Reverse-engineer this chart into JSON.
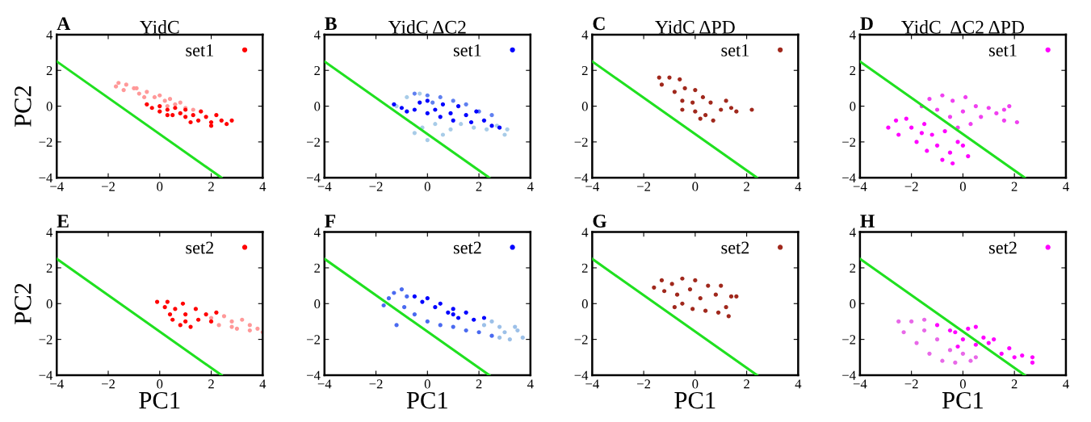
{
  "chart_data": [
    {
      "type": "scatter",
      "title": "YidC",
      "annotations": [
        "A"
      ],
      "ylabel": "PC2",
      "xlim": [
        -4,
        4
      ],
      "ylim": [
        -4,
        4
      ],
      "xticks": [
        -4,
        -2,
        0,
        2,
        4
      ],
      "yticks": [
        -4,
        -2,
        0,
        2,
        4
      ],
      "legend": "top right",
      "marker": "circle",
      "series": [
        {
          "color": "#ff9999",
          "x": [
            -1.7,
            -1.6,
            -1.3,
            -1.4,
            -1.0,
            -0.8,
            -0.5,
            -0.6,
            -0.2,
            0,
            0.2,
            0.4,
            0.6,
            0.8,
            1.0,
            1.3,
            0.3,
            -0.9
          ],
          "values": [
            1.1,
            1.3,
            1.2,
            0.9,
            1.0,
            0.7,
            0.8,
            0.5,
            0.5,
            0.6,
            0.3,
            0.4,
            0.1,
            0.2,
            -0.1,
            -0.2,
            0.0,
            1.0
          ]
        },
        {
          "name": "set1",
          "color": "#ff0000",
          "x": [
            -0.5,
            -0.3,
            0,
            0,
            0.3,
            0.5,
            0.6,
            0.8,
            1.0,
            1.0,
            1.3,
            1.5,
            1.6,
            1.8,
            2.0,
            2.2,
            2.4,
            2.6,
            2.8,
            0.3,
            1.2,
            2.0
          ],
          "values": [
            0.1,
            -0.1,
            0.0,
            -0.3,
            -0.2,
            -0.5,
            -0.1,
            -0.4,
            -0.6,
            -0.2,
            -0.5,
            -0.8,
            -0.3,
            -0.6,
            -0.9,
            -0.5,
            -0.8,
            -1.0,
            -0.8,
            -0.5,
            -0.9,
            -1.1
          ]
        },
        {
          "type": "line",
          "marker": "none",
          "color": "#20e020",
          "x": [
            -4,
            2.4
          ],
          "values": [
            2.5,
            -4
          ]
        }
      ]
    },
    {
      "type": "scatter",
      "title": "YidC ΔC2",
      "annotations": [
        "B"
      ],
      "xlim": [
        -4,
        4
      ],
      "ylim": [
        -4,
        4
      ],
      "xticks": [
        -4,
        -2,
        0,
        2,
        4
      ],
      "yticks": [
        -4,
        -2,
        0,
        2,
        4
      ],
      "legend": "top right",
      "marker": "circle",
      "series": [
        {
          "color": "#a8cce8",
          "x": [
            -1.2,
            -0.8,
            -0.5,
            -0.2,
            0,
            0.3,
            0.6,
            0.9,
            1.3,
            1.8,
            2.3,
            2.7,
            3.1,
            3.0,
            -0.3
          ],
          "values": [
            0.0,
            0.5,
            -1.5,
            -1.2,
            -1.9,
            -1.0,
            -1.6,
            -1.3,
            -1.0,
            -1.2,
            -1.3,
            -1.1,
            -1.3,
            -1.6,
            0.7
          ]
        },
        {
          "color": "#6080f0",
          "x": [
            -0.5,
            0,
            0.5,
            1.0,
            1.5,
            2.0,
            2.5,
            0.2
          ],
          "values": [
            0.7,
            0.6,
            0.5,
            0.3,
            0.1,
            -0.3,
            -0.5,
            0.2
          ]
        },
        {
          "name": "set1",
          "color": "#0000ff",
          "x": [
            -1.3,
            -1.0,
            -0.8,
            -0.5,
            -0.3,
            0,
            0,
            0.3,
            0.5,
            0.6,
            0.9,
            1.0,
            1.2,
            1.5,
            1.7,
            1.9,
            2.2,
            2.5,
            2.8
          ],
          "values": [
            0.1,
            -0.1,
            -0.3,
            -0.2,
            0.2,
            -0.4,
            0.3,
            -0.2,
            -0.6,
            0.1,
            -0.4,
            -0.8,
            0.0,
            -0.5,
            -0.9,
            -0.3,
            -0.8,
            -1.1,
            -1.2
          ]
        },
        {
          "type": "line",
          "marker": "none",
          "color": "#20e020",
          "x": [
            -4,
            2.4
          ],
          "values": [
            2.5,
            -4
          ]
        }
      ]
    },
    {
      "type": "scatter",
      "title": "YidC ΔPD",
      "annotations": [
        "C"
      ],
      "xlim": [
        -4,
        4
      ],
      "ylim": [
        -4,
        4
      ],
      "xticks": [
        -4,
        -2,
        0,
        2,
        4
      ],
      "yticks": [
        -4,
        -2,
        0,
        2,
        4
      ],
      "legend": "top right",
      "marker": "circle",
      "series": [
        {
          "name": "set1",
          "color": "#a0281c",
          "x": [
            -1.4,
            -1.3,
            -1.0,
            -0.8,
            -0.6,
            -0.5,
            -0.4,
            -0.1,
            0,
            0,
            0.3,
            0.4,
            0.6,
            0.7,
            1.0,
            1.2,
            1.4,
            1.6,
            2.2,
            -0.5,
            0.2
          ],
          "values": [
            1.6,
            1.2,
            1.6,
            0.8,
            1.5,
            0.3,
            1.0,
            0.2,
            0.9,
            -0.3,
            0.5,
            -0.5,
            0.2,
            -0.8,
            -0.2,
            0.3,
            -0.1,
            -0.3,
            -0.2,
            -0.2,
            -0.7
          ]
        },
        {
          "type": "line",
          "marker": "none",
          "color": "#20e020",
          "x": [
            -4,
            2.4
          ],
          "values": [
            2.5,
            -4
          ]
        }
      ]
    },
    {
      "type": "scatter",
      "title": "YidC  ΔC2 ΔPD",
      "annotations": [
        "D"
      ],
      "xlim": [
        -4,
        4
      ],
      "ylim": [
        -4,
        4
      ],
      "xticks": [
        -4,
        -2,
        0,
        2,
        4
      ],
      "yticks": [
        -4,
        -2,
        0,
        2,
        4
      ],
      "legend": "top right",
      "marker": "circle",
      "series": [
        {
          "color": "#f040f0",
          "x": [
            -1.6,
            -1.3,
            -1.0,
            -0.8,
            -0.5,
            -0.4,
            0,
            0.1,
            0.3,
            0.5,
            0.7,
            1.0,
            1.3,
            1.6,
            1.8,
            2.1,
            1.6,
            -0.2
          ],
          "values": [
            0.0,
            0.4,
            -0.2,
            0.6,
            -0.6,
            0.3,
            -0.3,
            0.5,
            -1.0,
            0.0,
            -0.6,
            -0.1,
            -0.4,
            -0.2,
            0.0,
            -0.9,
            -0.8,
            -1.2
          ]
        },
        {
          "name": "set1",
          "color": "#ff00ff",
          "x": [
            -2.9,
            -2.6,
            -2.5,
            -2.2,
            -2.0,
            -1.8,
            -1.5,
            -1.4,
            -1.2,
            -1.0,
            -0.8,
            -0.7,
            -0.5,
            -0.4,
            -0.2,
            0.2,
            0,
            -1.6
          ],
          "values": [
            -1.2,
            -0.8,
            -1.6,
            -0.7,
            -1.2,
            -2.0,
            -1.0,
            -2.5,
            -1.6,
            -2.2,
            -3.0,
            -1.4,
            -2.6,
            -3.2,
            -2.0,
            -2.8,
            -2.2,
            -1.5
          ]
        },
        {
          "type": "line",
          "marker": "none",
          "color": "#20e020",
          "x": [
            -4,
            2.4
          ],
          "values": [
            2.5,
            -4
          ]
        }
      ]
    },
    {
      "type": "scatter",
      "annotations": [
        "E"
      ],
      "xlabel": "PC1",
      "ylabel": "PC2",
      "xlim": [
        -4,
        4
      ],
      "ylim": [
        -4,
        4
      ],
      "xticks": [
        -4,
        -2,
        0,
        2,
        4
      ],
      "yticks": [
        -4,
        -2,
        0,
        2,
        4
      ],
      "legend": "top right",
      "marker": "circle",
      "series": [
        {
          "color": "#ff9999",
          "x": [
            2.0,
            2.3,
            2.5,
            2.8,
            3.0,
            3.2,
            3.5,
            3.8,
            4.0,
            3.5,
            2.8
          ],
          "values": [
            -0.8,
            -1.2,
            -0.7,
            -1.0,
            -1.4,
            -0.9,
            -1.2,
            -1.4,
            -1.6,
            -1.5,
            -1.3
          ]
        },
        {
          "name": "set2",
          "color": "#ff0000",
          "x": [
            -0.1,
            0.2,
            0.3,
            0.4,
            0.6,
            0.8,
            0.9,
            1.0,
            1.2,
            1.4,
            1.5,
            1.8,
            2.0,
            2.2,
            1.0,
            0.5
          ],
          "values": [
            0.1,
            -0.2,
            0.1,
            -0.6,
            -0.3,
            -1.2,
            0.0,
            -0.6,
            -1.3,
            -0.3,
            -0.9,
            -0.6,
            -1.0,
            -0.5,
            -1.0,
            -0.9
          ]
        },
        {
          "type": "line",
          "marker": "none",
          "color": "#20e020",
          "x": [
            -4,
            2.4
          ],
          "values": [
            2.5,
            -4
          ]
        }
      ]
    },
    {
      "type": "scatter",
      "annotations": [
        "F"
      ],
      "xlabel": "PC1",
      "xlim": [
        -4,
        4
      ],
      "ylim": [
        -4,
        4
      ],
      "xticks": [
        -4,
        -2,
        0,
        2,
        4
      ],
      "yticks": [
        -4,
        -2,
        0,
        2,
        4
      ],
      "legend": "top right",
      "marker": "circle",
      "series": [
        {
          "color": "#9cc0e8",
          "x": [
            2.2,
            2.5,
            2.8,
            3.0,
            3.2,
            3.5,
            3.7,
            3.4,
            2.8
          ],
          "values": [
            -1.2,
            -1.0,
            -1.3,
            -1.6,
            -2.0,
            -1.5,
            -1.9,
            -1.3,
            -1.9
          ]
        },
        {
          "color": "#4a6af0",
          "x": [
            -1.7,
            -1.5,
            -1.3,
            -1.0,
            -0.8,
            -0.9,
            -0.5,
            0,
            0.5,
            1.0,
            1.5,
            2.0,
            2.5,
            -1.2
          ],
          "values": [
            -0.1,
            0.3,
            0.6,
            0.8,
            0.4,
            -0.2,
            -0.6,
            -1.0,
            -1.2,
            -1.3,
            -1.5,
            -1.6,
            -1.8,
            -1.2
          ]
        },
        {
          "name": "set2",
          "color": "#0000ff",
          "x": [
            -0.5,
            -0.2,
            0,
            0.3,
            0.5,
            0.8,
            1.0,
            1.2,
            1.5,
            1.8,
            2.2,
            1.0
          ],
          "values": [
            0.4,
            0.1,
            0.3,
            -0.2,
            0.0,
            -0.5,
            -0.3,
            -0.8,
            -0.5,
            -0.9,
            -0.8,
            -0.6
          ]
        },
        {
          "type": "line",
          "marker": "none",
          "color": "#20e020",
          "x": [
            -4,
            2.4
          ],
          "values": [
            2.5,
            -4
          ]
        }
      ]
    },
    {
      "type": "scatter",
      "annotations": [
        "G"
      ],
      "xlabel": "PC1",
      "xlim": [
        -4,
        4
      ],
      "ylim": [
        -4,
        4
      ],
      "xticks": [
        -4,
        -2,
        0,
        2,
        4
      ],
      "yticks": [
        -4,
        -2,
        0,
        2,
        4
      ],
      "legend": "top right",
      "marker": "circle",
      "series": [
        {
          "name": "set2",
          "color": "#a0281c",
          "x": [
            -1.6,
            -1.3,
            -1.2,
            -0.9,
            -0.7,
            -0.5,
            -0.5,
            -0.2,
            -0.1,
            0,
            0.2,
            0.4,
            0.5,
            0.8,
            0.9,
            1.0,
            1.2,
            1.3,
            1.4,
            1.6,
            -0.8
          ],
          "values": [
            0.9,
            1.3,
            0.7,
            1.1,
            0.5,
            1.4,
            0.0,
            0.8,
            -0.3,
            1.3,
            0.3,
            -0.4,
            1.0,
            0.5,
            -0.5,
            1.0,
            -0.2,
            -0.7,
            0.4,
            0.4,
            -0.2
          ]
        },
        {
          "type": "line",
          "marker": "none",
          "color": "#20e020",
          "x": [
            -4,
            2.4
          ],
          "values": [
            2.5,
            -4
          ]
        }
      ]
    },
    {
      "type": "scatter",
      "annotations": [
        "H"
      ],
      "xlabel": "PC1",
      "xlim": [
        -4,
        4
      ],
      "ylim": [
        -4,
        4
      ],
      "xticks": [
        -4,
        -2,
        0,
        2,
        4
      ],
      "yticks": [
        -4,
        -2,
        0,
        2,
        4
      ],
      "legend": "top right",
      "marker": "circle",
      "series": [
        {
          "color": "#e868e8",
          "x": [
            -2.5,
            -2.3,
            -2.0,
            -1.8,
            -1.5,
            -1.3,
            -1.0,
            -0.8,
            -0.5,
            -0.3,
            0,
            0.3,
            -1.5,
            0.5
          ],
          "values": [
            -1.0,
            -1.6,
            -1.0,
            -2.2,
            -1.5,
            -2.8,
            -2.0,
            -3.2,
            -2.6,
            -3.3,
            -2.8,
            -3.2,
            -0.9,
            -3.0
          ]
        },
        {
          "name": "set2",
          "color": "#ff00ff",
          "x": [
            -1.0,
            -0.5,
            -0.3,
            0,
            0.2,
            0.5,
            0.8,
            1.0,
            1.2,
            1.5,
            1.8,
            2.0,
            2.3,
            2.7,
            2.7,
            0.5,
            -0.2
          ],
          "values": [
            -1.2,
            -1.5,
            -1.6,
            -2.0,
            -1.4,
            -2.3,
            -1.9,
            -2.2,
            -2.0,
            -2.8,
            -2.5,
            -3.0,
            -2.9,
            -3.3,
            -3.0,
            -1.3,
            -2.4
          ]
        },
        {
          "type": "line",
          "marker": "none",
          "color": "#20e020",
          "x": [
            -4,
            2.4
          ],
          "values": [
            2.5,
            -4
          ]
        }
      ]
    }
  ]
}
